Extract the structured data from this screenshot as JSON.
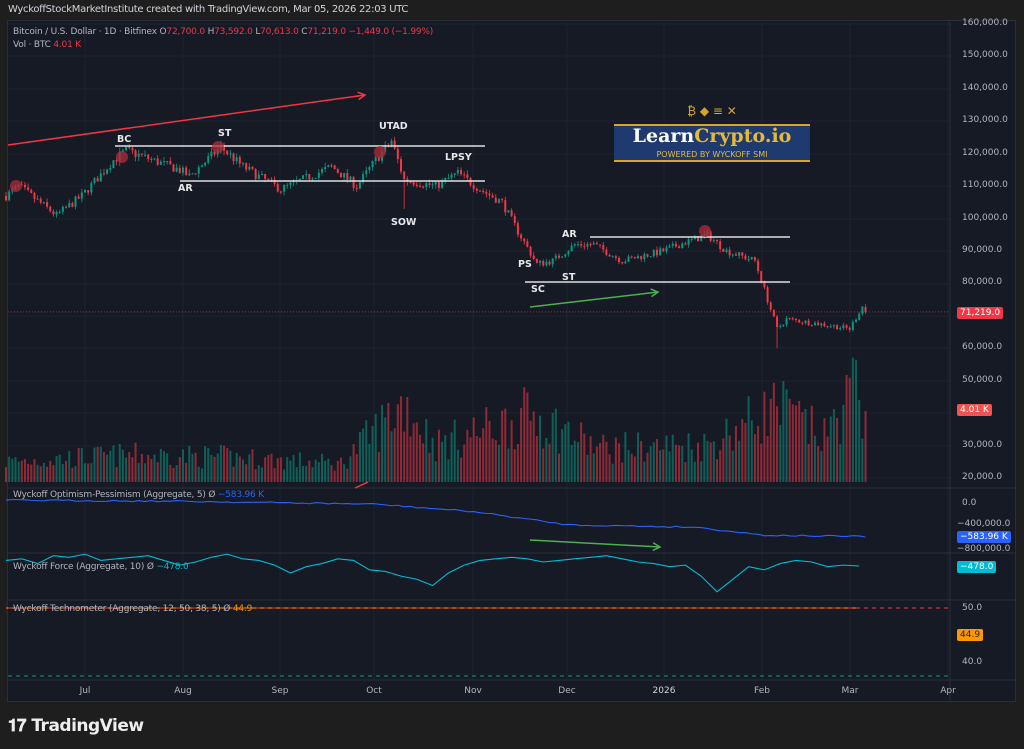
{
  "header": {
    "credit": "WyckoffStockMarketInstitute created with TradingView.com, Mar 05, 2026 22:03 UTC"
  },
  "symbol": {
    "name": "Bitcoin / U.S. Dollar · 1D · Bitfinex",
    "o_label": "O",
    "o": "72,700.0",
    "h_label": "H",
    "h": "73,592.0",
    "l_label": "L",
    "l": "70,613.0",
    "c_label": "C",
    "c": "71,219.0",
    "change": "−1,449.0 (−1.99%)",
    "vol_label": "Vol · BTC",
    "vol": "4.01 K"
  },
  "indicators": {
    "op": {
      "title": "Wyckoff Optimism-Pessimism (Aggregate, 5)",
      "symbol": "Ø",
      "value": "−583.96 K",
      "color": "#2962ff",
      "axis": [
        "0.0",
        "−400,000.0",
        "−800,000.0"
      ]
    },
    "force": {
      "title": "Wyckoff Force (Aggregate, 10)",
      "symbol": "Ø",
      "value": "−478.0",
      "color": "#00bcd4",
      "axis": [
        "0.0"
      ]
    },
    "techno": {
      "title": "Wyckoff Technometer (Aggregate, 12, 50, 38, 5)",
      "symbol": "Ø",
      "value": "44.9",
      "color": "#ff9800",
      "axis": [
        "50.0",
        "40.0"
      ]
    }
  },
  "price_axis": [
    "160,000.0",
    "150,000.0",
    "140,000.0",
    "130,000.0",
    "120,000.0",
    "110,000.0",
    "100,000.0",
    "90,000.0",
    "80,000.0",
    "60,000.0",
    "50,000.0",
    "30,000.0",
    "20,000.0"
  ],
  "last_price_tag": "71,219.0",
  "volume_tag": "4.01 K",
  "time_axis": [
    "Jul",
    "Aug",
    "Sep",
    "Oct",
    "Nov",
    "Dec",
    "2026",
    "Feb",
    "Mar",
    "Apr"
  ],
  "annotations": {
    "bc": "BC",
    "st1": "ST",
    "ar1": "AR",
    "utad": "UTAD",
    "sow": "SOW",
    "lpsy": "LPSY",
    "ps": "PS",
    "sc": "SC",
    "ar2": "AR",
    "st2": "ST"
  },
  "logo": {
    "text_a": "Learn",
    "text_b": "Crypto.io",
    "tagline": "POWERED BY WYCKOFF SMI"
  },
  "footer": {
    "brand": "TradingView"
  },
  "colors": {
    "up": "#089981",
    "down": "#f23645",
    "bg": "#161a25"
  },
  "chart_data": {
    "type": "candlestick",
    "interval": "1D",
    "ylim": [
      20000,
      160000
    ],
    "close_anchors": [
      [
        "2025-06-06",
        107000
      ],
      [
        "2025-06-10",
        110000
      ],
      [
        "2025-06-22",
        101000
      ],
      [
        "2025-06-30",
        107000
      ],
      [
        "2025-07-10",
        118000
      ],
      [
        "2025-07-14",
        121000
      ],
      [
        "2025-07-31",
        115000
      ],
      [
        "2025-08-03",
        113000
      ],
      [
        "2025-08-13",
        122000
      ],
      [
        "2025-08-20",
        116000
      ],
      [
        "2025-09-01",
        109000
      ],
      [
        "2025-09-17",
        116000
      ],
      [
        "2025-09-25",
        110000
      ],
      [
        "2025-10-01",
        118000
      ],
      [
        "2025-10-06",
        124000
      ],
      [
        "2025-10-10",
        112000
      ],
      [
        "2025-10-20",
        110000
      ],
      [
        "2025-10-27",
        114000
      ],
      [
        "2025-11-03",
        109000
      ],
      [
        "2025-11-10",
        105000
      ],
      [
        "2025-11-15",
        96000
      ],
      [
        "2025-11-21",
        86000
      ],
      [
        "2025-11-26",
        87000
      ],
      [
        "2025-12-03",
        92000
      ],
      [
        "2025-12-09",
        92000
      ],
      [
        "2025-12-18",
        87000
      ],
      [
        "2025-12-31",
        90000
      ],
      [
        "2026-01-05",
        92000
      ],
      [
        "2026-01-14",
        95000
      ],
      [
        "2026-01-20",
        90000
      ],
      [
        "2026-01-29",
        87000
      ],
      [
        "2026-02-01",
        78000
      ],
      [
        "2026-02-05",
        66000
      ],
      [
        "2026-02-08",
        69000
      ],
      [
        "2026-02-15",
        68000
      ],
      [
        "2026-02-22",
        67000
      ],
      [
        "2026-02-28",
        66000
      ],
      [
        "2026-03-04",
        73000
      ],
      [
        "2026-03-05",
        71219
      ]
    ],
    "last_candle": {
      "open": 72700,
      "high": 73592,
      "low": 70613,
      "close": 71219
    },
    "volume_k_anchors": [
      [
        "2025-06-06",
        1.2
      ],
      [
        "2025-07-14",
        1.6
      ],
      [
        "2025-08-13",
        1.5
      ],
      [
        "2025-09-20",
        1.1
      ],
      [
        "2025-10-10",
        4.7
      ],
      [
        "2025-10-20",
        2.2
      ],
      [
        "2025-11-20",
        4.0
      ],
      [
        "2025-12-10",
        2.0
      ],
      [
        "2026-01-14",
        2.2
      ],
      [
        "2026-02-05",
        4.5
      ],
      [
        "2026-02-20",
        2.6
      ],
      [
        "2026-03-01",
        5.5
      ],
      [
        "2026-03-05",
        4.01
      ]
    ],
    "op_k_anchors": [
      [
        "2025-06-06",
        50
      ],
      [
        "2025-08-01",
        30
      ],
      [
        "2025-10-01",
        -20
      ],
      [
        "2025-11-01",
        -150
      ],
      [
        "2025-12-01",
        -380
      ],
      [
        "2026-01-10",
        -420
      ],
      [
        "2026-02-01",
        -560
      ],
      [
        "2026-03-05",
        -583.96
      ]
    ],
    "force_every5d": [
      -300,
      -250,
      -400,
      -150,
      -200,
      -100,
      -300,
      -250,
      -200,
      -150,
      -300,
      -450,
      -350,
      -200,
      -100,
      -250,
      -300,
      -450,
      -700,
      -500,
      -400,
      -250,
      -300,
      -600,
      -650,
      -800,
      -900,
      -1100,
      -700,
      -450,
      -300,
      -250,
      -200,
      -250,
      -350,
      -300,
      -250,
      -200,
      -150,
      -250,
      -350,
      -400,
      -500,
      -450,
      -800,
      -1300,
      -900,
      -500,
      -600,
      -400,
      -300,
      -350,
      -500,
      -450,
      -478
    ],
    "techno_every5d": [
      49,
      44,
      41,
      47,
      43,
      45,
      40,
      42,
      48,
      46,
      44,
      41,
      49,
      50,
      46,
      43,
      40,
      39,
      42,
      44,
      48,
      50,
      45,
      41,
      43,
      46,
      44,
      39,
      40,
      42,
      45,
      43,
      41,
      40,
      44,
      46,
      43,
      42,
      45,
      44,
      47,
      50,
      46,
      42,
      44,
      41,
      38,
      40,
      42,
      43,
      41,
      42,
      44,
      43,
      44.9
    ]
  }
}
